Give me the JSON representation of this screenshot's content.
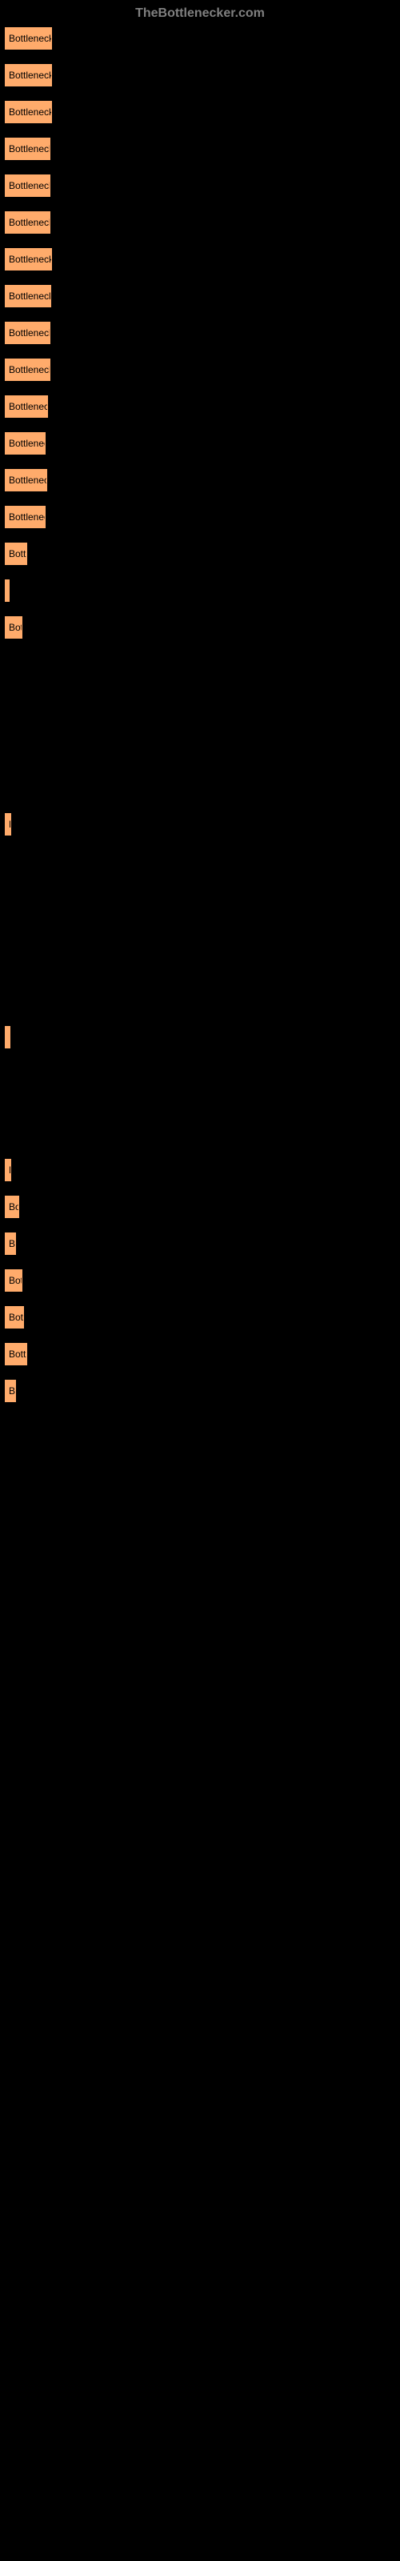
{
  "header": "TheBottlenecker.com",
  "bars": [
    {
      "width": 59,
      "label": "Bottleneck res"
    },
    {
      "width": 59,
      "label": "Bottleneck res"
    },
    {
      "width": 59,
      "label": "Bottleneck res"
    },
    {
      "width": 57,
      "label": "Bottleneck re"
    },
    {
      "width": 57,
      "label": "Bottleneck re"
    },
    {
      "width": 57,
      "label": "Bottleneck re"
    },
    {
      "width": 59,
      "label": "Bottleneck res"
    },
    {
      "width": 58,
      "label": "Bottleneck res"
    },
    {
      "width": 57,
      "label": "Bottleneck re"
    },
    {
      "width": 57,
      "label": "Bottleneck re"
    },
    {
      "width": 54,
      "label": "Bottleneck r"
    },
    {
      "width": 51,
      "label": "Bottleneck"
    },
    {
      "width": 53,
      "label": "Bottleneck"
    },
    {
      "width": 51,
      "label": "Bottleneck"
    },
    {
      "width": 28,
      "label": "Bottler"
    },
    {
      "width": 5,
      "label": "B"
    },
    {
      "width": 22,
      "label": "Bott"
    }
  ],
  "bigGaps": [
    {
      "gapBefore": 200,
      "width": 8,
      "label": "B"
    },
    {
      "gapBefore": 220,
      "width": 7,
      "label": "B"
    },
    {
      "gapBefore": 120,
      "width": 8,
      "label": "B"
    }
  ],
  "endBars": [
    {
      "width": 18,
      "label": "Bot"
    },
    {
      "width": 14,
      "label": "Bo"
    },
    {
      "width": 22,
      "label": "Bott"
    },
    {
      "width": 24,
      "label": "Bott"
    },
    {
      "width": 28,
      "label": "Bottle"
    },
    {
      "width": 14,
      "label": "Bo"
    }
  ],
  "colors": {
    "background": "#000000",
    "barFill": "#ffab6b",
    "barText": "#000000",
    "headerText": "#808080"
  }
}
